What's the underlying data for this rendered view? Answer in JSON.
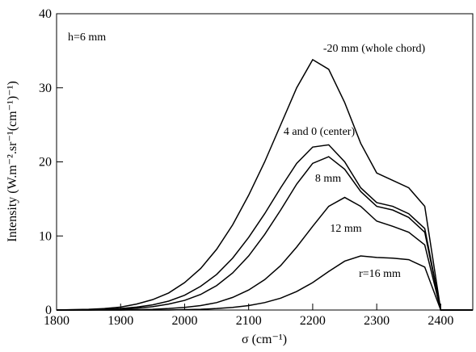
{
  "chart_data": {
    "type": "line",
    "x_label": "σ (cm⁻¹)",
    "y_label": "Intensity (W.m⁻².sr⁻¹(cm⁻¹)⁻¹)",
    "annotation": "h=6 mm",
    "x": [
      1800,
      1825,
      1850,
      1875,
      1900,
      1925,
      1950,
      1975,
      2000,
      2025,
      2050,
      2075,
      2100,
      2125,
      2150,
      2175,
      2200,
      2225,
      2250,
      2275,
      2300,
      2325,
      2350,
      2375,
      2400,
      2425,
      2450
    ],
    "series": [
      {
        "name": "-20 mm (whole chord)",
        "color": "#000000",
        "values": [
          0,
          0.05,
          0.1,
          0.2,
          0.4,
          0.8,
          1.4,
          2.3,
          3.7,
          5.6,
          8.2,
          11.5,
          15.5,
          20,
          25,
          30,
          33.8,
          32.5,
          28,
          22.5,
          18.5,
          17.5,
          16.5,
          14,
          0,
          0,
          0
        ]
      },
      {
        "name": "4 and 0 (center)",
        "color": "#000000",
        "values": [
          0,
          0,
          0.05,
          0.1,
          0.2,
          0.4,
          0.7,
          1.2,
          2,
          3.2,
          4.8,
          7,
          9.8,
          13,
          16.5,
          19.8,
          22,
          22.3,
          20,
          16.5,
          14.5,
          14,
          13,
          11,
          0,
          0,
          0
        ]
      },
      {
        "name": "8 mm",
        "color": "#000000",
        "values": [
          0,
          0,
          0,
          0.05,
          0.1,
          0.25,
          0.45,
          0.8,
          1.3,
          2.1,
          3.3,
          5,
          7.3,
          10.2,
          13.5,
          17,
          19.8,
          20.7,
          19,
          16,
          14,
          13.5,
          12.5,
          10.5,
          0,
          0,
          0
        ]
      },
      {
        "name": "12 mm",
        "color": "#000000",
        "values": [
          0,
          0,
          0,
          0,
          0,
          0.05,
          0.1,
          0.2,
          0.35,
          0.6,
          1,
          1.7,
          2.7,
          4.1,
          6,
          8.5,
          11.3,
          14,
          15.2,
          14,
          12,
          11.3,
          10.5,
          8.8,
          0,
          0,
          0
        ]
      },
      {
        "name": "r=16 mm",
        "color": "#000000",
        "values": [
          0,
          0,
          0,
          0,
          0,
          0,
          0,
          0,
          0.05,
          0.1,
          0.2,
          0.35,
          0.6,
          1,
          1.6,
          2.5,
          3.7,
          5.2,
          6.6,
          7.3,
          7.1,
          7,
          6.8,
          5.8,
          0,
          0,
          0
        ]
      }
    ],
    "xlim": [
      1800,
      2450
    ],
    "xticks": [
      1800,
      1900,
      2000,
      2100,
      2200,
      2300,
      2400
    ],
    "ylim": [
      0,
      40
    ],
    "yticks": [
      0,
      10,
      20,
      30,
      40
    ]
  }
}
